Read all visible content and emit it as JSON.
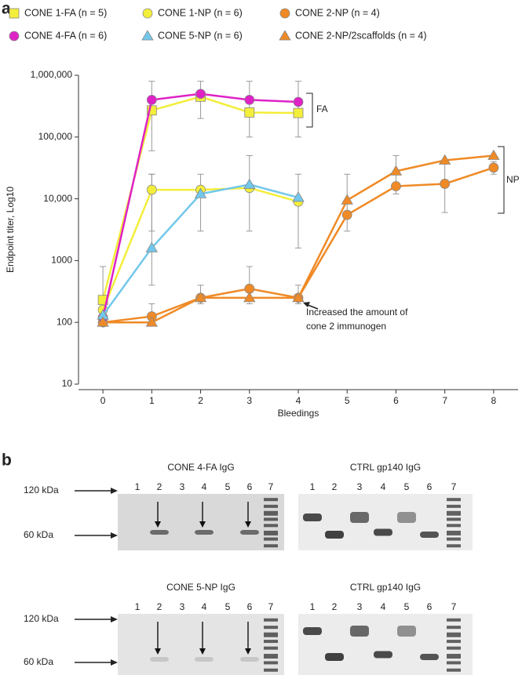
{
  "panels": [
    "a",
    "b"
  ],
  "chart_data": {
    "type": "line",
    "log_scale": true,
    "xlabel": "Bleedings",
    "ylabel": "Endpoint titer, Log10",
    "x": [
      0,
      1,
      2,
      3,
      4,
      5,
      6,
      7,
      8
    ],
    "xlim": [
      -0.5,
      8.5
    ],
    "xticks": [
      0,
      1,
      2,
      3,
      4,
      5,
      6,
      7,
      8
    ],
    "ylim": [
      10,
      1000000
    ],
    "yticks": [
      10,
      100,
      1000,
      {
        "value": 10000,
        "label": "10,000"
      },
      {
        "value": 100000,
        "label": "100,000"
      },
      {
        "value": 1000000,
        "label": "1,000,000"
      }
    ],
    "series": [
      {
        "name": "CONE 1-FA (n = 5)",
        "color": "#f3ee3a",
        "marker": "square",
        "values": [
          230,
          270000,
          450000,
          250000,
          245000,
          null,
          null,
          null,
          null
        ],
        "errors": [
          [
            150,
            800
          ],
          [
            60000,
            800000
          ],
          [
            200000,
            800000
          ],
          [
            100000,
            800000
          ],
          [
            100000,
            800000
          ],
          null,
          null,
          null,
          null
        ]
      },
      {
        "name": "CONE 1-NP (n = 6)",
        "color": "#f3ee3a",
        "marker": "circle",
        "values": [
          160,
          14000,
          14000,
          15000,
          9000,
          null,
          null,
          null,
          null
        ],
        "errors": [
          null,
          [
            3000,
            25000
          ],
          [
            3000,
            25000
          ],
          [
            3000,
            50000
          ],
          [
            1600,
            25000
          ],
          null,
          null,
          null,
          null
        ]
      },
      {
        "name": "CONE 2-NP (n = 4)",
        "color": "#ef8a26",
        "marker": "circle",
        "values": [
          100,
          125,
          250,
          350,
          250,
          5500,
          16000,
          17500,
          32000
        ],
        "errors": [
          null,
          [
            100,
            200
          ],
          [
            200,
            400
          ],
          [
            200,
            800
          ],
          [
            200,
            400
          ],
          [
            3000,
            25000
          ],
          [
            12000,
            50000
          ],
          [
            6000,
            40000
          ],
          [
            25000,
            40000
          ]
        ]
      },
      {
        "name": "CONE 4-FA (n = 6)",
        "color": "#de22c6",
        "marker": "circle",
        "values": [
          120,
          400000,
          500000,
          400000,
          370000,
          null,
          null,
          null,
          null
        ],
        "errors": [
          null,
          null,
          null,
          null,
          null,
          null,
          null,
          null,
          null
        ]
      },
      {
        "name": "CONE 5-NP (n = 6)",
        "color": "#72c8ec",
        "marker": "triangle",
        "values": [
          130,
          1600,
          12000,
          17000,
          10500,
          null,
          null,
          null,
          null
        ],
        "errors": [
          null,
          [
            400,
            25000
          ],
          null,
          null,
          null,
          null,
          null,
          null,
          null
        ]
      },
      {
        "name": "CONE 2-NP/2scaffolds (n = 4)",
        "color": "#ef8a26",
        "marker": "triangle",
        "values": [
          100,
          100,
          250,
          250,
          250,
          9500,
          28000,
          42000,
          50000
        ],
        "errors": [
          null,
          null,
          null,
          null,
          null,
          null,
          null,
          null,
          null
        ]
      }
    ],
    "annotations": {
      "fa": "FA",
      "np": "NP",
      "note": [
        "Increased the amount of",
        "cone 2 immunogen"
      ]
    }
  },
  "blot_rows": [
    {
      "markers": [
        "120 kDa",
        "60 kDa"
      ],
      "blots": [
        {
          "title": "CONE 4-FA IgG",
          "lanes": [
            "1",
            "2",
            "3",
            "4",
            "5",
            "6",
            "7"
          ]
        },
        {
          "title": "CTRL gp140 IgG",
          "lanes": [
            "1",
            "2",
            "3",
            "4",
            "5",
            "6",
            "7"
          ]
        }
      ]
    },
    {
      "markers": [
        "120 kDa",
        "60 kDa"
      ],
      "blots": [
        {
          "title": "CONE 5-NP IgG",
          "lanes": [
            "1",
            "2",
            "3",
            "4",
            "5",
            "6",
            "7"
          ]
        },
        {
          "title": "CTRL gp140 IgG",
          "lanes": [
            "1",
            "2",
            "3",
            "4",
            "5",
            "6",
            "7"
          ]
        }
      ]
    }
  ]
}
